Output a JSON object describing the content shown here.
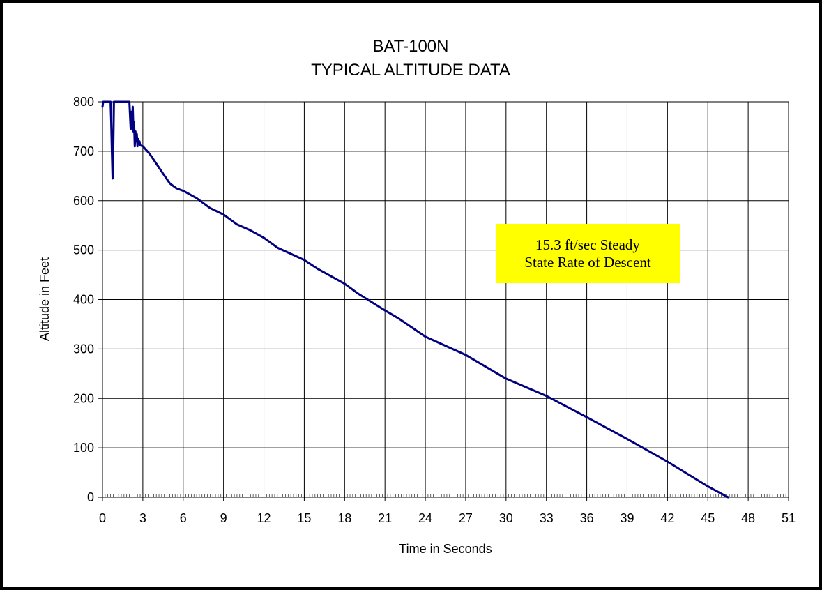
{
  "chart_data": {
    "type": "line",
    "title": "BAT-100N",
    "subtitle": "TYPICAL ALTITUDE DATA",
    "xlabel": "Time in Seconds",
    "ylabel": "Altitude in Feet",
    "xlim": [
      0,
      51
    ],
    "ylim": [
      0,
      800
    ],
    "x_ticks": [
      0,
      3,
      6,
      9,
      12,
      15,
      18,
      21,
      24,
      27,
      30,
      33,
      36,
      39,
      42,
      45,
      48,
      51
    ],
    "y_ticks": [
      0,
      100,
      200,
      300,
      400,
      500,
      600,
      700,
      800
    ],
    "grid": true,
    "legend": "none",
    "annotation": {
      "line1": "15.3 ft/sec Steady",
      "line2": "State Rate of Descent",
      "background": "#ffff00"
    },
    "series": [
      {
        "color": "#000080",
        "x": [
          0.0,
          0.05,
          0.6,
          0.65,
          0.7,
          0.75,
          0.8,
          0.85,
          2.0,
          2.05,
          2.1,
          2.15,
          2.2,
          2.25,
          2.3,
          2.35,
          2.4,
          2.45,
          2.5,
          2.55,
          2.6,
          2.65,
          2.7,
          2.75,
          2.8,
          3.0,
          3.5,
          4.0,
          4.5,
          5.0,
          5.5,
          6.0,
          7.0,
          8.0,
          9.0,
          10.0,
          11.0,
          12.0,
          13.0,
          15.0,
          16.0,
          18.0,
          19.0,
          21.0,
          22.0,
          24.0,
          27.0,
          30.0,
          33.0,
          36.0,
          39.0,
          42.0,
          45.0,
          46.5
        ],
        "y": [
          790,
          800,
          800,
          760,
          700,
          645,
          700,
          800,
          800,
          770,
          745,
          780,
          750,
          790,
          740,
          760,
          710,
          740,
          720,
          735,
          710,
          725,
          715,
          720,
          712,
          710,
          695,
          675,
          655,
          635,
          625,
          620,
          605,
          585,
          572,
          552,
          540,
          525,
          505,
          480,
          462,
          432,
          412,
          378,
          362,
          325,
          288,
          240,
          205,
          162,
          118,
          72,
          22,
          0
        ]
      }
    ]
  }
}
